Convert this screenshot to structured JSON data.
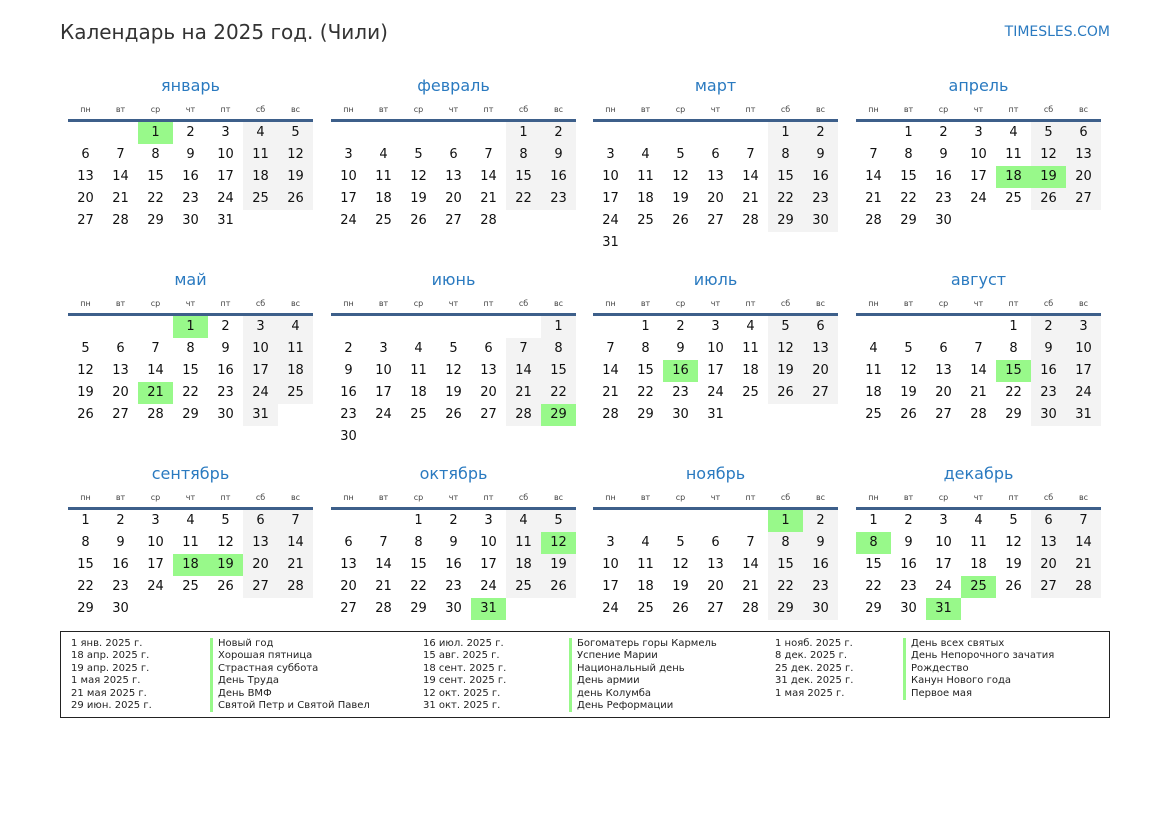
{
  "header": {
    "title": "Календарь на 2025 год. (Чили)",
    "brand": "TIMESLES.COM"
  },
  "year": 2025,
  "weekdays": [
    "пн",
    "вт",
    "ср",
    "чт",
    "пт",
    "сб",
    "вс"
  ],
  "months": [
    "январь",
    "февраль",
    "март",
    "апрель",
    "май",
    "июнь",
    "июль",
    "август",
    "сентябрь",
    "октябрь",
    "ноябрь",
    "декабрь"
  ],
  "colors": {
    "accent": "#2a7ac0",
    "holiday": "#98f98a",
    "weekend": "#f3f3f3",
    "rule": "#3d5f8a"
  },
  "holidays": [
    {
      "date": "2025-01-01",
      "label": "1 янв. 2025 г.",
      "name": "Новый год"
    },
    {
      "date": "2025-04-18",
      "label": "18 апр. 2025 г.",
      "name": "Хорошая пятница"
    },
    {
      "date": "2025-04-19",
      "label": "19 апр. 2025 г.",
      "name": "Страстная суббота"
    },
    {
      "date": "2025-05-01",
      "label": "1 мая 2025 г.",
      "name": "День Труда"
    },
    {
      "date": "2025-05-21",
      "label": "21 мая 2025 г.",
      "name": "День ВМФ"
    },
    {
      "date": "2025-06-29",
      "label": "29 июн. 2025 г.",
      "name": "Святой Петр и Святой Павел"
    },
    {
      "date": "2025-07-16",
      "label": "16 июл. 2025 г.",
      "name": "Богоматерь горы Кармель"
    },
    {
      "date": "2025-08-15",
      "label": "15 авг. 2025 г.",
      "name": "Успение Марии"
    },
    {
      "date": "2025-09-18",
      "label": "18 сент. 2025 г.",
      "name": "Национальный день"
    },
    {
      "date": "2025-09-19",
      "label": "19 сент. 2025 г.",
      "name": "День армии"
    },
    {
      "date": "2025-10-12",
      "label": "12 окт. 2025 г.",
      "name": "день Колумба"
    },
    {
      "date": "2025-10-31",
      "label": "31 окт. 2025 г.",
      "name": "День Реформации"
    },
    {
      "date": "2025-11-01",
      "label": "1 нояб. 2025 г.",
      "name": "День всех святых"
    },
    {
      "date": "2025-12-08",
      "label": "8 дек. 2025 г.",
      "name": "День Непорочного зачатия"
    },
    {
      "date": "2025-12-25",
      "label": "25 дек. 2025 г.",
      "name": "Рождество"
    },
    {
      "date": "2025-12-31",
      "label": "31 дек. 2025 г.",
      "name": "Канун Нового года"
    },
    {
      "date": "2025-05-01",
      "label": "1 мая 2025 г.",
      "name": "Первое мая"
    }
  ]
}
